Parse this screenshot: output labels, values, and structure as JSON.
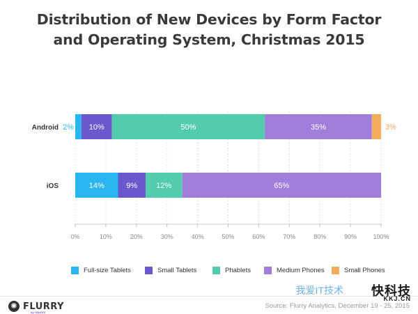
{
  "title": {
    "line1": "Distribution of New Devices by Form Factor",
    "line2": "and Operating System, Christmas 2015"
  },
  "chart_data": {
    "type": "bar",
    "orientation": "horizontal",
    "stacked": true,
    "categories": [
      "Android",
      "iOS"
    ],
    "series": [
      {
        "name": "Full-size Tablets",
        "color": "#29b6f0",
        "values": [
          2,
          14
        ]
      },
      {
        "name": "Small Tablets",
        "color": "#6a58cf",
        "values": [
          10,
          9
        ]
      },
      {
        "name": "Phablets",
        "color": "#52ccad",
        "values": [
          50,
          12
        ]
      },
      {
        "name": "Medium Phones",
        "color": "#a07fdc",
        "values": [
          35,
          65
        ]
      },
      {
        "name": "Small Phones",
        "color": "#f3ac5b",
        "values": [
          3,
          0
        ]
      }
    ],
    "data_labels": [
      [
        "2%",
        "10%",
        "50%",
        "35%",
        "3%"
      ],
      [
        "14%",
        "9%",
        "12%",
        "65%",
        ""
      ]
    ],
    "xticks": [
      "0%",
      "10%",
      "20%",
      "30%",
      "40%",
      "50%",
      "60%",
      "70%",
      "80%",
      "90%",
      "100%"
    ],
    "xlim": [
      0,
      100
    ],
    "legend_position": "bottom"
  },
  "footer": {
    "logo_text": "FLURRY",
    "logo_sub": "by YAHOO!",
    "source": "Source: Flurry Analytics, December 19 - 25, 2015"
  },
  "watermark": {
    "text_cn": "快科技",
    "text_sub": "KKJ.CN",
    "text_faint": "我爱IT技术"
  }
}
